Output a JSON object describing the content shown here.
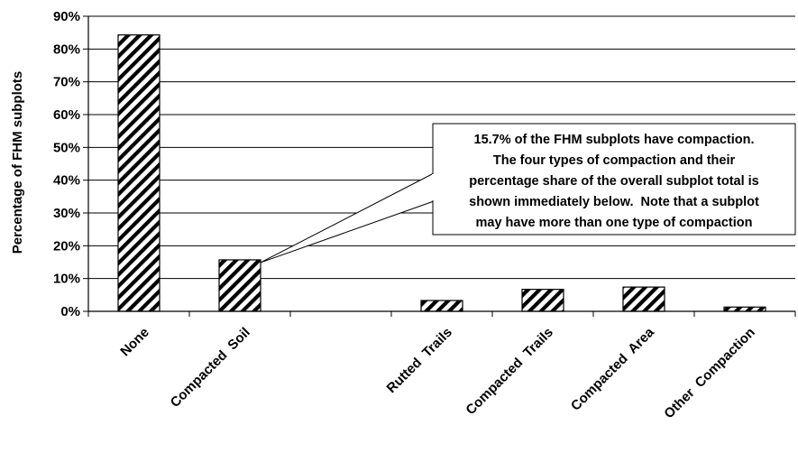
{
  "chart_data": {
    "type": "bar",
    "ylabel": "Percentage of FHM subplots",
    "ylim": [
      0,
      90
    ],
    "yticks": [
      "0%",
      "10%",
      "20%",
      "30%",
      "40%",
      "50%",
      "60%",
      "70%",
      "80%",
      "90%"
    ],
    "grid": true,
    "categories": [
      "None",
      "Compacted  Soil",
      "",
      "Rutted  Trails",
      "Compacted  Trails",
      "Compacted  Area",
      "Other  Compaction"
    ],
    "values": [
      84.3,
      15.7,
      null,
      3.3,
      6.7,
      7.4,
      1.3
    ],
    "bar_pattern": "diagonal-hatch",
    "annotation": {
      "lines": [
        "15.7% of the FHM subplots have compaction.",
        "The four types of compaction and their",
        "percentage share of the overall subplot total is",
        "shown immediately below.  Note that a subplot",
        "may have more than one type of compaction"
      ],
      "points_to": "Compacted  Soil"
    }
  }
}
